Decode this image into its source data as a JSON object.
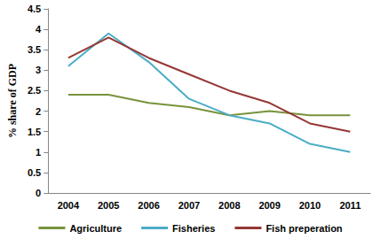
{
  "chart_data": {
    "type": "line",
    "y_label": "% share of GDP",
    "categories": [
      "2004",
      "2005",
      "2006",
      "2007",
      "2008",
      "2009",
      "2010",
      "2011"
    ],
    "series": [
      {
        "name": "Agriculture",
        "color": "#77933c",
        "values": [
          2.4,
          2.4,
          2.2,
          2.1,
          1.9,
          2.0,
          1.9,
          1.9
        ]
      },
      {
        "name": "Fisheries",
        "color": "#4bacc6",
        "values": [
          3.1,
          3.9,
          3.2,
          2.3,
          1.9,
          1.7,
          1.2,
          1.0
        ]
      },
      {
        "name": "Fish preperation",
        "color": "#953735",
        "values": [
          3.3,
          3.8,
          3.3,
          2.9,
          2.5,
          2.2,
          1.7,
          1.5
        ]
      }
    ],
    "ylim": [
      0,
      4.5
    ],
    "yticks": [
      0,
      0.5,
      1,
      1.5,
      2,
      2.5,
      3,
      3.5,
      4,
      4.5
    ],
    "grid": false,
    "legend": "bottom"
  }
}
